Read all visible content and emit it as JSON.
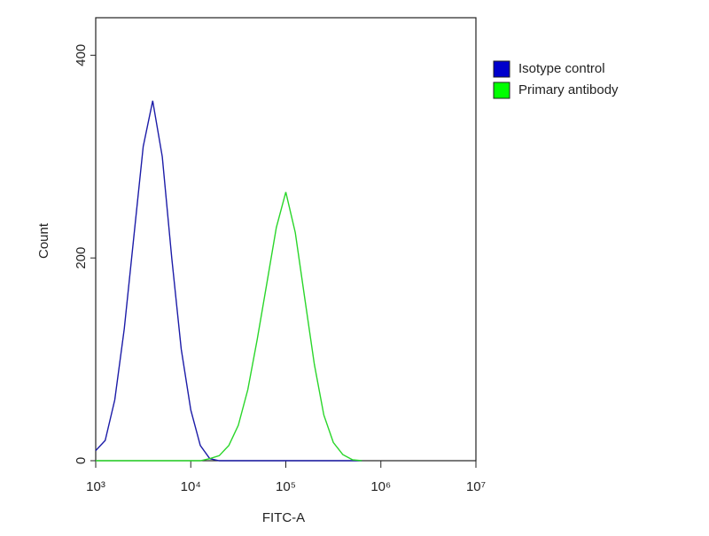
{
  "chart_data": {
    "type": "line",
    "x_label": "FITC-A",
    "y_label": "Count",
    "x": [
      1000,
      1259,
      1585,
      1995,
      2512,
      3162,
      3981,
      5012,
      6310,
      7943,
      10000,
      12589,
      15849,
      19953,
      25119,
      31623,
      39811,
      50119,
      63096,
      79433,
      100000,
      125893,
      158489,
      199526,
      251189,
      316228,
      398107,
      501187,
      630957
    ],
    "series": [
      {
        "name": "Isotype control",
        "color": "#1c1ca8",
        "legend_color": "#0000cc",
        "values": [
          10,
          20,
          60,
          130,
          220,
          310,
          355,
          300,
          200,
          110,
          50,
          15,
          2,
          0,
          0,
          0,
          0,
          0,
          0,
          0,
          0,
          0,
          0,
          0,
          0,
          0,
          0,
          0,
          0
        ]
      },
      {
        "name": "Primary antibody",
        "color": "#2ad62a",
        "legend_color": "#00ff00",
        "values": [
          0,
          0,
          0,
          0,
          0,
          0,
          0,
          0,
          0,
          0,
          0,
          0,
          2,
          5,
          15,
          35,
          70,
          120,
          175,
          230,
          265,
          225,
          160,
          95,
          45,
          18,
          6,
          1,
          0
        ]
      }
    ],
    "xscale": "log",
    "xlim": [
      1000,
      10000000
    ],
    "xticks": [
      {
        "value": 1000,
        "label": "10³"
      },
      {
        "value": 10000,
        "label": "10⁴"
      },
      {
        "value": 100000,
        "label": "10⁵"
      },
      {
        "value": 1000000,
        "label": "10⁶"
      },
      {
        "value": 10000000,
        "label": "10⁷"
      }
    ],
    "ylim": [
      0,
      437
    ],
    "yticks": [
      0,
      200,
      400
    ],
    "grid": false,
    "legend": "right"
  }
}
